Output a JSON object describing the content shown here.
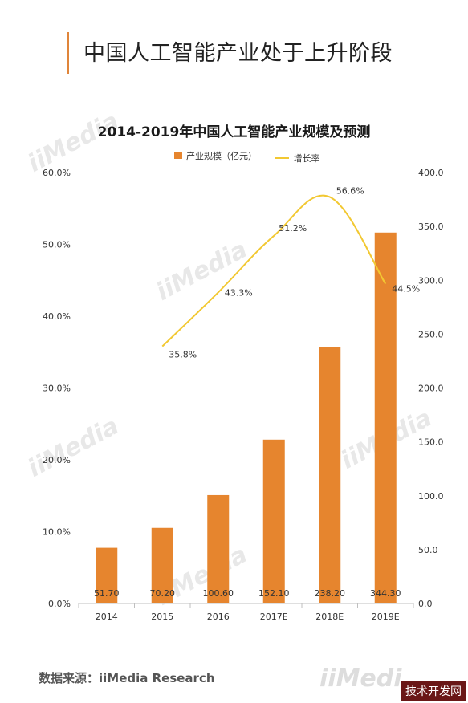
{
  "header": {
    "title": "中国人工智能产业处于上升阶段"
  },
  "watermark": {
    "text": "iiMedia"
  },
  "source_text": "数据来源：iiMedia Research",
  "corner_logo_text": "iiMedi",
  "site_badge": "技术开发网",
  "chart_data": {
    "type": "bar",
    "title": "2014-2019年中国人工智能产业规模及预测",
    "categories": [
      "2014",
      "2015",
      "2016",
      "2017E",
      "2018E",
      "2019E"
    ],
    "series": [
      {
        "name": "产业规模（亿元）",
        "type": "bar",
        "axis": "right",
        "values": [
          51.7,
          70.2,
          100.6,
          152.1,
          238.2,
          344.3
        ],
        "labels": [
          "51.70",
          "70.20",
          "100.60",
          "152.10",
          "238.20",
          "344.30"
        ]
      },
      {
        "name": "增长率",
        "type": "line",
        "axis": "left",
        "values": [
          null,
          35.8,
          43.3,
          51.2,
          56.6,
          44.5
        ],
        "labels": [
          "",
          "35.8%",
          "43.3%",
          "51.2%",
          "56.6%",
          "44.5%"
        ]
      }
    ],
    "y_left": {
      "ylim": [
        0,
        60
      ],
      "ticks": [
        "0.0%",
        "10.0%",
        "20.0%",
        "30.0%",
        "40.0%",
        "50.0%",
        "60.0%"
      ]
    },
    "y_right": {
      "ylim": [
        0,
        400
      ],
      "ticks": [
        "0.0",
        "50.0",
        "100.0",
        "150.0",
        "200.0",
        "250.0",
        "300.0",
        "350.0",
        "400.0"
      ]
    },
    "legend_position": "top",
    "grid": false,
    "colors": {
      "bar": "#e6852e",
      "line": "#f2c832"
    }
  }
}
